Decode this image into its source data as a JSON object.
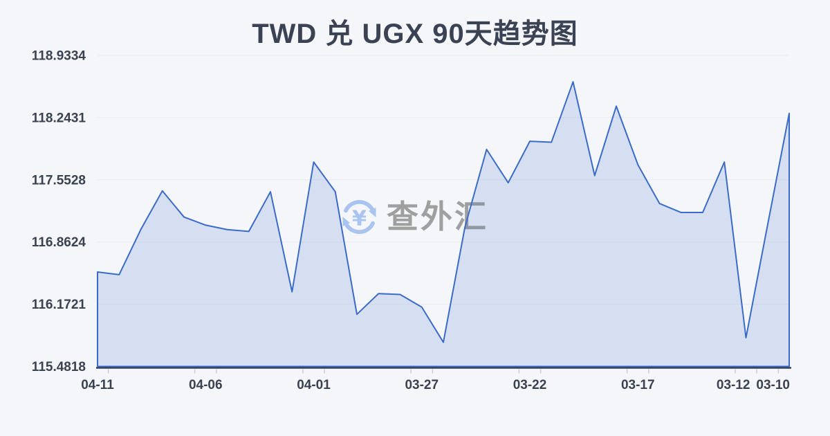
{
  "page": {
    "background": "#f4f6f9"
  },
  "chart_data": {
    "type": "area",
    "title": "TWD 兑 UGX 90天趋势图",
    "xlabel": "",
    "ylabel": "",
    "x": [
      "04-11",
      "04-10",
      "04-09",
      "04-08",
      "04-07",
      "04-06",
      "04-05",
      "04-04",
      "04-03",
      "04-02",
      "04-01",
      "03-31",
      "03-30",
      "03-29",
      "03-28",
      "03-27",
      "03-26",
      "03-25",
      "03-24",
      "03-23",
      "03-22",
      "03-21",
      "03-20",
      "03-19",
      "03-18",
      "03-17",
      "03-16",
      "03-15",
      "03-14",
      "03-13",
      "03-12",
      "03-11",
      "03-10"
    ],
    "values": [
      116.53,
      116.5,
      117.0,
      117.43,
      117.14,
      117.05,
      117.0,
      116.98,
      117.42,
      116.31,
      117.75,
      117.42,
      116.06,
      116.29,
      116.28,
      116.14,
      115.75,
      117.03,
      117.89,
      117.52,
      117.98,
      117.97,
      118.64,
      117.6,
      118.37,
      117.72,
      117.29,
      117.19,
      117.19,
      117.75,
      115.8,
      117.05,
      118.29
    ],
    "ylim": [
      115.4818,
      118.9334
    ],
    "yticks": [
      "115.4818",
      "116.1721",
      "116.8624",
      "117.5528",
      "118.2431",
      "118.9334"
    ],
    "xticks": [
      {
        "i": 0,
        "label": "04-11"
      },
      {
        "i": 5,
        "label": "04-06"
      },
      {
        "i": 10,
        "label": "04-01"
      },
      {
        "i": 15,
        "label": "03-27"
      },
      {
        "i": 20,
        "label": "03-22"
      },
      {
        "i": 25,
        "label": "03-17"
      },
      {
        "i": 30,
        "label": "03-12"
      },
      {
        "i": 32,
        "label": "03-10"
      }
    ],
    "grid": true,
    "legend": false,
    "colors": {
      "line": "#3a6bc8",
      "fill": "rgba(61,108,196,0.16)",
      "axis": "#36415f",
      "tick": "#c9cdd6",
      "grid": "#e8eaef",
      "label": "#3a4150",
      "title": "#3a4254",
      "background": "#f4f6f9"
    }
  },
  "watermark": {
    "text": "查外汇",
    "icon_symbol": "¥",
    "icon_name": "yuan-refresh-icon",
    "icon_color": "#a6c2ef",
    "text_color": "#9b9b9b"
  }
}
